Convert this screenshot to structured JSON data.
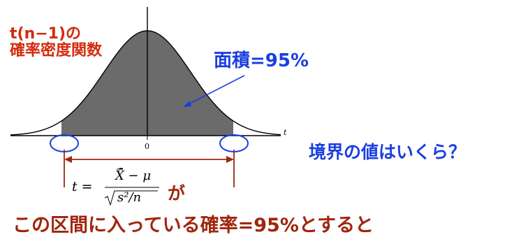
{
  "distribution_label": {
    "line1": "t(n−1)の",
    "line2": "確率密度関数"
  },
  "area_label": "面積=95%",
  "axis": {
    "x_var": "t",
    "zero_tick": "0"
  },
  "boundary_question": "境界の値はいくら？",
  "formula": {
    "lhs": "t =",
    "numerator": "X̄ − μ",
    "denominator_sqrt": "s²/n"
  },
  "ga_particle": "が",
  "bottom_caption": "この区間に入っている確率=95%とすると",
  "colors": {
    "curve_fill": "#6b6b6b",
    "red_label": "#d42a0c",
    "blue_text": "#1a3fe0",
    "marker_circle": "#1a3fe0",
    "interval_bracket": "#a0260f"
  }
}
